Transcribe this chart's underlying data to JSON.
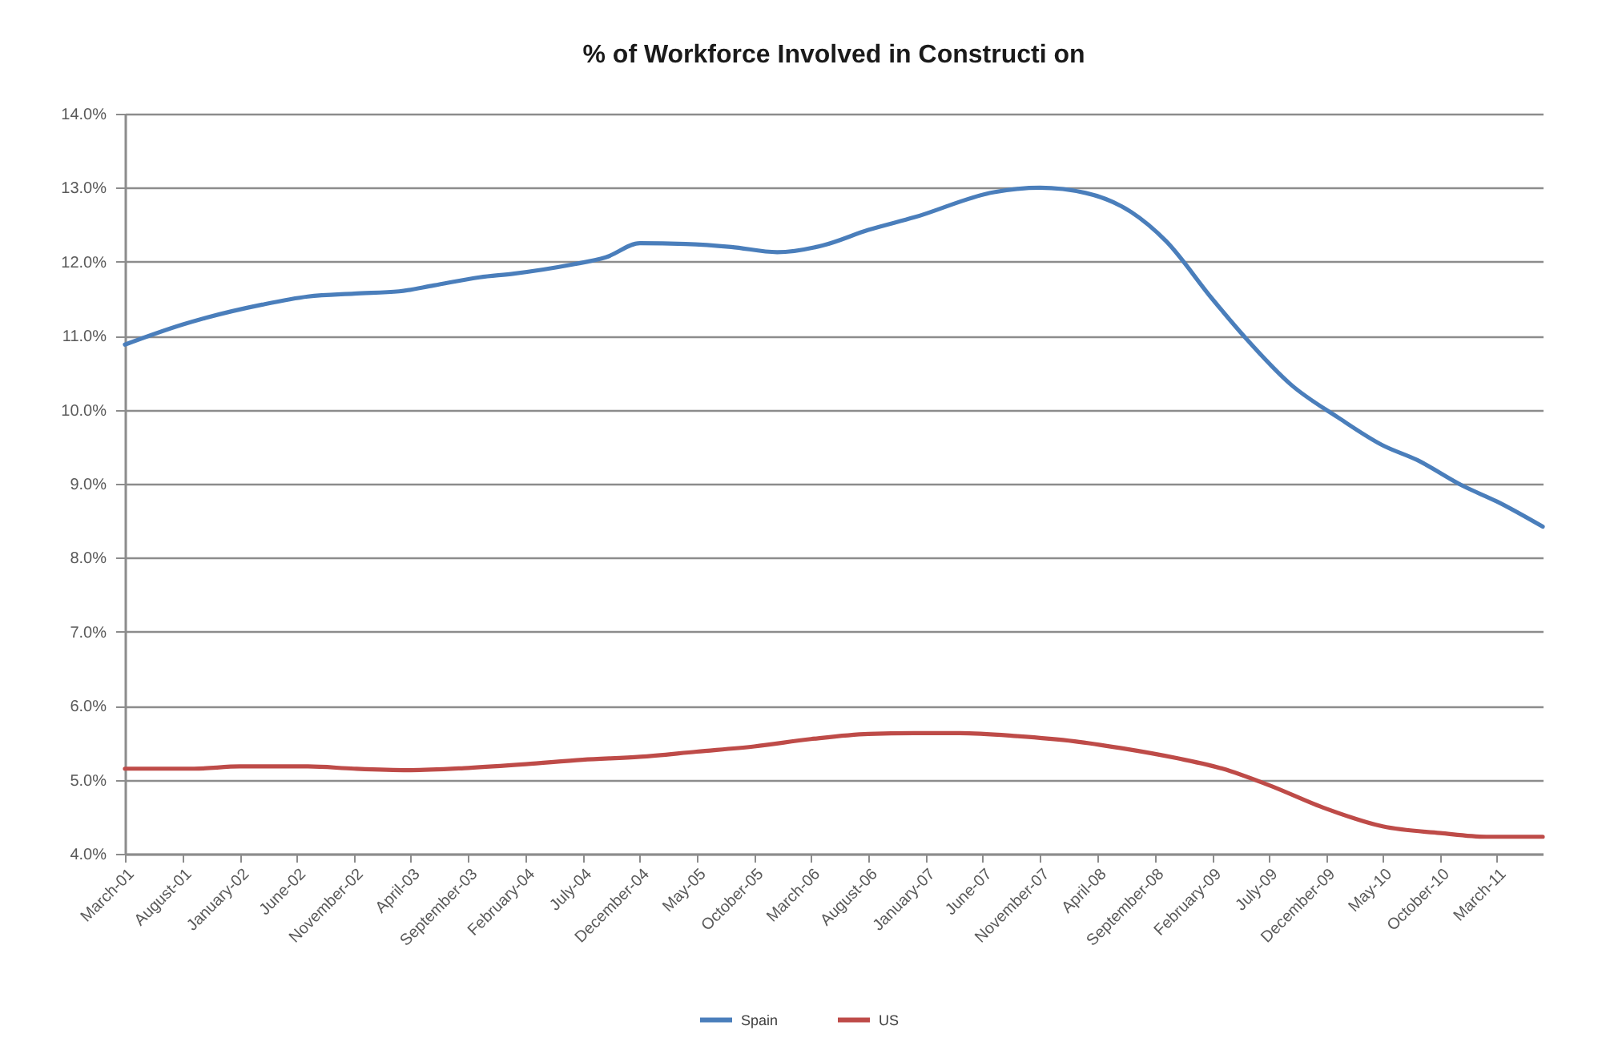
{
  "chart_data": {
    "type": "line",
    "title": "% of Workforce Involved in Constructi on",
    "xlim": [
      "2001-03",
      "2011-07"
    ],
    "xticks": [
      {
        "value": "2001-03",
        "label": "March-01"
      },
      {
        "value": "2001-08",
        "label": "August-01"
      },
      {
        "value": "2002-01",
        "label": "January-02"
      },
      {
        "value": "2002-06",
        "label": "June-02"
      },
      {
        "value": "2002-11",
        "label": "November-02"
      },
      {
        "value": "2003-04",
        "label": "April-03"
      },
      {
        "value": "2003-09",
        "label": "September-03"
      },
      {
        "value": "2004-02",
        "label": "February-04"
      },
      {
        "value": "2004-07",
        "label": "July-04"
      },
      {
        "value": "2004-12",
        "label": "December-04"
      },
      {
        "value": "2005-05",
        "label": "May-05"
      },
      {
        "value": "2005-10",
        "label": "October-05"
      },
      {
        "value": "2006-03",
        "label": "March-06"
      },
      {
        "value": "2006-08",
        "label": "August-06"
      },
      {
        "value": "2007-01",
        "label": "January-07"
      },
      {
        "value": "2007-06",
        "label": "June-07"
      },
      {
        "value": "2007-11",
        "label": "November-07"
      },
      {
        "value": "2008-04",
        "label": "April-08"
      },
      {
        "value": "2008-09",
        "label": "September-08"
      },
      {
        "value": "2009-02",
        "label": "February-09"
      },
      {
        "value": "2009-07",
        "label": "July-09"
      },
      {
        "value": "2009-12",
        "label": "December-09"
      },
      {
        "value": "2010-05",
        "label": "May-10"
      },
      {
        "value": "2010-10",
        "label": "October-10"
      },
      {
        "value": "2011-03",
        "label": "March-11"
      }
    ],
    "ylim": [
      4,
      14
    ],
    "yticks": [
      {
        "value": 4,
        "label": "4.0%"
      },
      {
        "value": 5,
        "label": "5.0%"
      },
      {
        "value": 6,
        "label": "6.0%"
      },
      {
        "value": 7,
        "label": "7.0%"
      },
      {
        "value": 8,
        "label": "8.0%"
      },
      {
        "value": 9,
        "label": "9.0%"
      },
      {
        "value": 10,
        "label": "10.0%"
      },
      {
        "value": 11,
        "label": "11.0%"
      },
      {
        "value": 12,
        "label": "12.0%"
      },
      {
        "value": 13,
        "label": "13.0%"
      },
      {
        "value": 14,
        "label": "14.0%"
      }
    ],
    "grid": "y",
    "legend": "bottom",
    "series": [
      {
        "name": "Spain",
        "color": "#4a7ebb",
        "x": [
          "2001-03",
          "2001-08",
          "2001-10",
          "2002-03",
          "2002-07",
          "2002-11",
          "2003-03",
          "2003-06",
          "2003-10",
          "2004-01",
          "2004-06",
          "2004-09",
          "2004-12",
          "2005-04",
          "2005-08",
          "2005-12",
          "2006-04",
          "2006-08",
          "2006-12",
          "2007-07",
          "2007-11",
          "2008-03",
          "2008-07",
          "2008-10",
          "2009-02",
          "2009-05",
          "2009-09",
          "2010-01",
          "2010-05",
          "2010-08",
          "2010-12",
          "2011-03",
          "2011-07"
        ],
        "values": [
          10.88,
          11.15,
          11.24,
          11.42,
          11.53,
          11.57,
          11.6,
          11.68,
          11.79,
          11.84,
          11.96,
          12.06,
          12.25,
          12.24,
          12.2,
          12.13,
          12.22,
          12.43,
          12.6,
          12.94,
          13.0,
          12.93,
          12.67,
          12.28,
          11.5,
          10.97,
          10.33,
          9.9,
          9.52,
          9.32,
          8.97,
          8.76,
          8.42
        ]
      },
      {
        "name": "US",
        "color": "#be4b48",
        "x": [
          "2001-03",
          "2001-09",
          "2002-01",
          "2002-07",
          "2002-11",
          "2003-04",
          "2003-09",
          "2004-02",
          "2004-07",
          "2004-12",
          "2005-05",
          "2005-10",
          "2006-03",
          "2006-08",
          "2006-12",
          "2007-04",
          "2007-09",
          "2008-02",
          "2008-06",
          "2008-11",
          "2009-03",
          "2009-07",
          "2009-12",
          "2010-05",
          "2010-10",
          "2011-02",
          "2011-07"
        ],
        "values": [
          5.15,
          5.15,
          5.18,
          5.18,
          5.15,
          5.13,
          5.16,
          5.21,
          5.27,
          5.31,
          5.38,
          5.45,
          5.55,
          5.62,
          5.63,
          5.63,
          5.59,
          5.52,
          5.43,
          5.29,
          5.15,
          4.93,
          4.61,
          4.37,
          4.28,
          4.23,
          4.23
        ]
      }
    ]
  }
}
